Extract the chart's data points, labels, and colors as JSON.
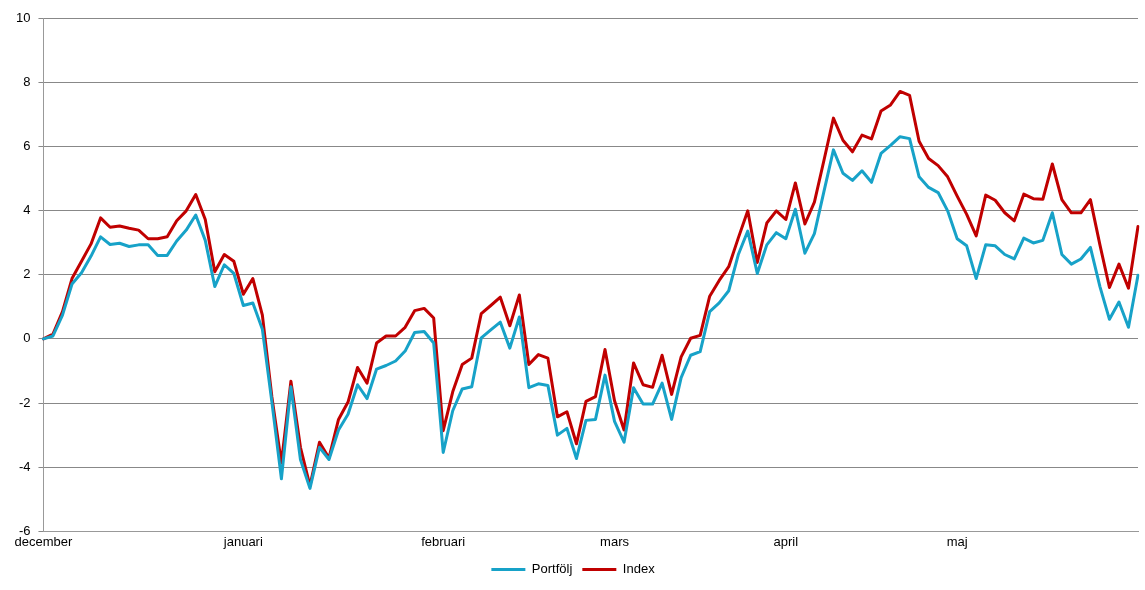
{
  "chart_data": {
    "type": "line",
    "categories": [
      "december",
      null,
      null,
      null,
      null,
      null,
      null,
      null,
      null,
      null,
      null,
      null,
      null,
      null,
      null,
      null,
      null,
      null,
      null,
      null,
      null,
      "januari",
      null,
      null,
      null,
      null,
      null,
      null,
      null,
      null,
      null,
      null,
      null,
      null,
      null,
      null,
      null,
      null,
      null,
      null,
      null,
      null,
      "februari",
      null,
      null,
      null,
      null,
      null,
      null,
      null,
      null,
      null,
      null,
      null,
      null,
      null,
      null,
      null,
      null,
      null,
      "mars",
      null,
      null,
      null,
      null,
      null,
      null,
      null,
      null,
      null,
      null,
      null,
      null,
      null,
      null,
      null,
      null,
      null,
      "april",
      null,
      null,
      null,
      null,
      null,
      null,
      null,
      null,
      null,
      null,
      null,
      null,
      null,
      null,
      null,
      null,
      null,
      "maj",
      null,
      null,
      null,
      null,
      null,
      null,
      null,
      null,
      null,
      null,
      null,
      null,
      null,
      null,
      null,
      null,
      null,
      null,
      null
    ],
    "series": [
      {
        "name": "Portfölj",
        "color": "#17a2c8",
        "values": [
          0,
          0.09,
          0.74,
          1.71,
          2.06,
          2.58,
          3.18,
          2.94,
          2.98,
          2.88,
          2.93,
          2.93,
          2.6,
          2.6,
          3.05,
          3.39,
          3.86,
          3.07,
          1.63,
          2.31,
          2.04,
          1.04,
          1.12,
          0.3,
          -1.97,
          -4.36,
          -1.49,
          -3.76,
          -4.66,
          -3.38,
          -3.76,
          -2.84,
          -2.35,
          -1.43,
          -1.86,
          -0.94,
          -0.83,
          -0.69,
          -0.38,
          0.2,
          0.23,
          -0.13,
          -3.54,
          -2.24,
          -1.56,
          -1.49,
          0.03,
          0.28,
          0.52,
          -0.29,
          0.68,
          -1.52,
          -1.4,
          -1.45,
          -3,
          -2.79,
          -3.73,
          -2.54,
          -2.51,
          -1.13,
          -2.57,
          -3.22,
          -1.52,
          -2.03,
          -2.03,
          -1.38,
          -2.51,
          -1.21,
          -0.51,
          -0.4,
          0.85,
          1.12,
          1.5,
          2.62,
          3.36,
          2.04,
          2.93,
          3.31,
          3.12,
          4.04,
          2.67,
          3.28,
          4.59,
          5.89,
          5.16,
          4.94,
          5.24,
          4.88,
          5.78,
          6.03,
          6.3,
          6.24,
          5.05,
          4.72,
          4.56,
          3.99,
          3.12,
          2.9,
          1.88,
          2.93,
          2.9,
          2.63,
          2.49,
          3.14,
          2.99,
          3.07,
          3.93,
          2.63,
          2.33,
          2.49,
          2.85,
          1.63,
          0.61,
          1.15,
          0.36,
          1.98
        ]
      },
      {
        "name": "Index",
        "color": "#c00000",
        "values": [
          0,
          0.15,
          0.85,
          1.88,
          2.42,
          2.96,
          3.77,
          3.48,
          3.52,
          3.45,
          3.39,
          3.12,
          3.12,
          3.18,
          3.68,
          3.99,
          4.5,
          3.72,
          2.09,
          2.63,
          2.42,
          1.39,
          1.88,
          0.74,
          -1.81,
          -3.87,
          -1.32,
          -3.38,
          -4.58,
          -3.22,
          -3.71,
          -2.51,
          -1.97,
          -0.89,
          -1.38,
          -0.13,
          0.09,
          0.09,
          0.36,
          0.88,
          0.95,
          0.65,
          -2.86,
          -1.65,
          -0.8,
          -0.6,
          0.79,
          1.04,
          1.3,
          0.41,
          1.37,
          -0.8,
          -0.49,
          -0.6,
          -2.43,
          -2.27,
          -3.27,
          -1.95,
          -1.8,
          -0.33,
          -1.93,
          -2.84,
          -0.75,
          -1.43,
          -1.51,
          -0.51,
          -1.73,
          -0.56,
          0.02,
          0.11,
          1.33,
          1.82,
          2.25,
          3.14,
          3.99,
          2.38,
          3.61,
          3.99,
          3.72,
          4.86,
          3.58,
          4.26,
          5.56,
          6.88,
          6.19,
          5.83,
          6.35,
          6.23,
          7.1,
          7.29,
          7.71,
          7.59,
          6.16,
          5.62,
          5.4,
          5.05,
          4.45,
          3.88,
          3.21,
          4.48,
          4.32,
          3.93,
          3.68,
          4.51,
          4.37,
          4.35,
          5.45,
          4.34,
          3.93,
          3.93,
          4.34,
          2.93,
          1.6,
          2.33,
          1.58,
          3.5
        ]
      }
    ],
    "ylim": [
      -6,
      10
    ],
    "yticks": [
      -6,
      -4,
      -2,
      0,
      2,
      4,
      6,
      8,
      10
    ],
    "grid": "y",
    "legend": "bottom",
    "marker": "none",
    "line_style": "solid"
  }
}
